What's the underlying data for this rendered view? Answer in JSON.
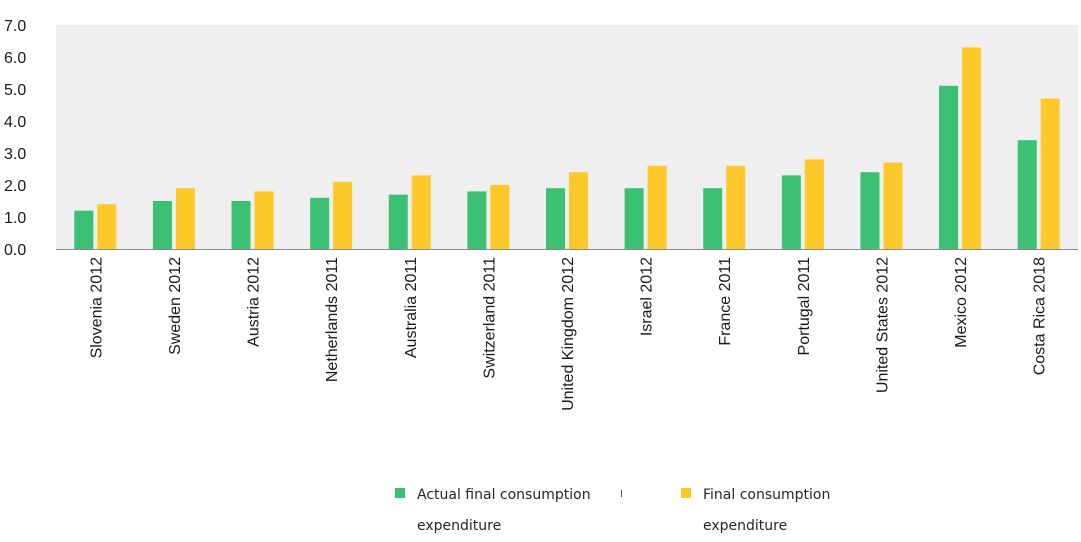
{
  "chart_data": {
    "type": "bar",
    "title": "",
    "xlabel": "",
    "ylabel": "",
    "ylim": [
      0,
      7
    ],
    "yticks": [
      "0.0",
      "1.0",
      "2.0",
      "3.0",
      "4.0",
      "5.0",
      "6.0",
      "7.0"
    ],
    "grid": false,
    "plot_background": "#efefef",
    "legend_position": "bottom-center",
    "categories": [
      "Slovenia 2012",
      "Sweden 2012",
      "Austria 2012",
      "Netherlands 2011",
      "Australia 2011",
      "Switzerland 2011",
      "United Kingdom 2012",
      "Israel 2012",
      "France 2011",
      "Portugal 2011",
      "United States 2012",
      "Mexico 2012",
      "Costa Rica 2018"
    ],
    "series": [
      {
        "name": "Actual final consumption expenditure",
        "color": "#3cc073",
        "values": [
          1.2,
          1.5,
          1.5,
          1.6,
          1.7,
          1.8,
          1.9,
          1.9,
          1.9,
          2.3,
          2.4,
          5.1,
          3.4
        ]
      },
      {
        "name": "Final consumption expenditure",
        "color": "#fdc82a",
        "values": [
          1.4,
          1.9,
          1.8,
          2.1,
          2.3,
          2.0,
          2.4,
          2.6,
          2.6,
          2.8,
          2.7,
          6.3,
          4.7
        ]
      }
    ]
  }
}
